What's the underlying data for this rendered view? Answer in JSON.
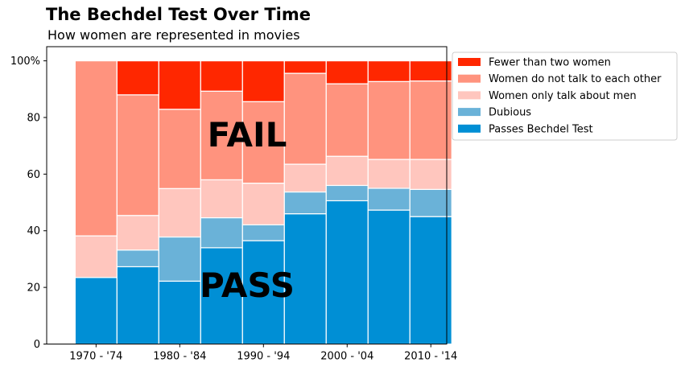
{
  "title": "The Bechdel Test Over Time",
  "subtitle": "How women are represented in movies",
  "chart_data": {
    "type": "bar",
    "stacked": true,
    "x_tick_labels": [
      "1970 - '74",
      "1980 - '84",
      "1990 - '94",
      "2000 - '04",
      "2010 - '14"
    ],
    "y_ticks": [
      "0",
      "20",
      "40",
      "60",
      "80",
      "100%"
    ],
    "ylim": [
      0,
      105
    ],
    "legend_position": "upper-right outside",
    "annotations": [
      "FAIL",
      "PASS"
    ],
    "bins": [
      1970,
      1975,
      1980,
      1985,
      1990,
      1995,
      2000,
      2005,
      2010
    ],
    "series": [
      {
        "name": "Passes Bechdel Test",
        "color": "#008FD5",
        "values": [
          23.5,
          27.3,
          22.2,
          34.0,
          36.5,
          46.0,
          50.6,
          47.3,
          45.0
        ]
      },
      {
        "name": "Dubious",
        "color": "#6AB2D8",
        "values": [
          0.0,
          5.9,
          15.6,
          10.6,
          5.6,
          7.7,
          5.4,
          7.7,
          9.6
        ]
      },
      {
        "name": "Women only talk about men",
        "color": "#FFC6BE",
        "values": [
          14.7,
          12.2,
          17.1,
          13.4,
          14.7,
          9.8,
          10.3,
          10.2,
          10.6
        ]
      },
      {
        "name": "Women do not talk to each other",
        "color": "#FF937E",
        "values": [
          61.8,
          42.6,
          28.0,
          31.3,
          28.8,
          32.1,
          25.6,
          27.5,
          27.7
        ]
      },
      {
        "name": "Fewer than two women",
        "color": "#FF2700",
        "values": [
          0.0,
          12.0,
          17.1,
          10.7,
          14.4,
          4.4,
          8.1,
          7.3,
          7.1
        ]
      }
    ],
    "legend_order": [
      "Fewer than two women",
      "Women do not talk to each other",
      "Women only talk about men",
      "Dubious",
      "Passes Bechdel Test"
    ]
  }
}
